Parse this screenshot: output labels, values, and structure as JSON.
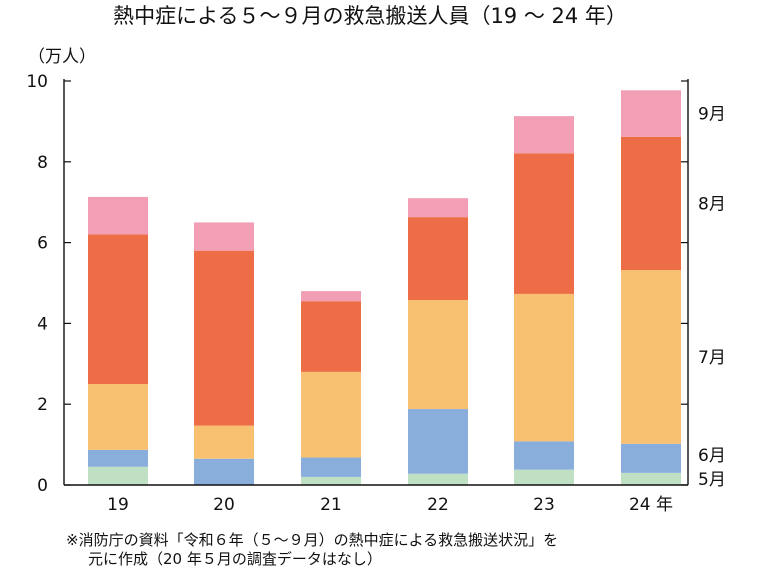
{
  "chart_data": {
    "type": "bar",
    "stacked": true,
    "title": "熱中症による５～９月の救急搬送人員（19 ～ 24 年）",
    "unit_label": "（万人）",
    "categories": [
      "19",
      "20",
      "21",
      "22",
      "23",
      "24 年"
    ],
    "ylim": [
      0,
      10
    ],
    "yticks": [
      "0",
      "2",
      "4",
      "6",
      "8",
      "10"
    ],
    "grid": false,
    "legend_position": "right, labels beside the last bar",
    "series": [
      {
        "name": "5月",
        "color": "#bfe0c2",
        "values": [
          0.45,
          0,
          0.2,
          0.28,
          0.38,
          0.3
        ]
      },
      {
        "name": "6月",
        "color": "#8aaedc",
        "values": [
          0.42,
          0.65,
          0.48,
          1.6,
          0.7,
          0.72
        ]
      },
      {
        "name": "7月",
        "color": "#f8c172",
        "values": [
          1.63,
          0.82,
          2.12,
          2.7,
          3.65,
          4.3
        ]
      },
      {
        "name": "8月",
        "color": "#ec6d46",
        "values": [
          3.7,
          4.33,
          1.75,
          2.05,
          3.48,
          3.3
        ]
      },
      {
        "name": "9月",
        "color": "#f29fb5",
        "values": [
          0.93,
          0.7,
          0.25,
          0.47,
          0.92,
          1.15
        ]
      }
    ],
    "note_lines": [
      "※消防庁の資料「令和６年（５～９月）の熱中症による救急搬送状況」を",
      "元に作成（20 年５月の調査データはなし）"
    ]
  }
}
